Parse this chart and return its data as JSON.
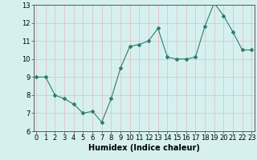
{
  "x": [
    0,
    1,
    2,
    3,
    4,
    5,
    6,
    7,
    8,
    9,
    10,
    11,
    12,
    13,
    14,
    15,
    16,
    17,
    18,
    19,
    20,
    21,
    22,
    23
  ],
  "y": [
    9.0,
    9.0,
    8.0,
    7.8,
    7.5,
    7.0,
    7.1,
    6.5,
    7.8,
    9.5,
    10.7,
    10.8,
    11.0,
    11.7,
    10.1,
    10.0,
    10.0,
    10.1,
    11.8,
    13.1,
    12.4,
    11.5,
    10.5,
    10.5
  ],
  "ylim": [
    6,
    13
  ],
  "xlim": [
    -0.3,
    23.3
  ],
  "yticks": [
    6,
    7,
    8,
    9,
    10,
    11,
    12,
    13
  ],
  "xticks": [
    0,
    1,
    2,
    3,
    4,
    5,
    6,
    7,
    8,
    9,
    10,
    11,
    12,
    13,
    14,
    15,
    16,
    17,
    18,
    19,
    20,
    21,
    22,
    23
  ],
  "xlabel": "Humidex (Indice chaleur)",
  "line_color": "#2e7d6e",
  "marker": "D",
  "marker_size": 2,
  "bg_color": "#d6f0f0",
  "grid_color": "#e8b8b8",
  "tick_fontsize": 6,
  "xlabel_fontsize": 7
}
